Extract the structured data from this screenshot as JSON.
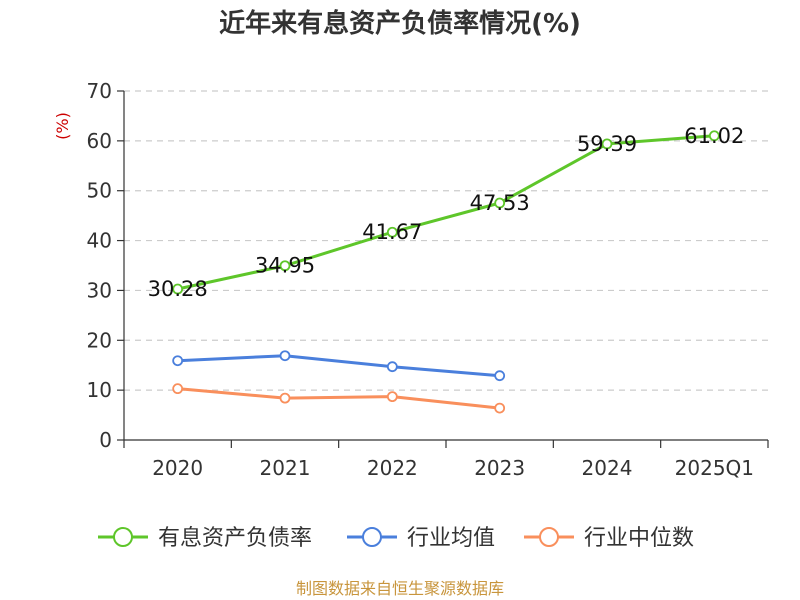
{
  "chart_data": {
    "type": "line",
    "title": "近年来有息资产负债率情况(%)",
    "ylabel": "(%)",
    "ylim": [
      0,
      70
    ],
    "yticks": [
      0,
      10,
      20,
      30,
      40,
      50,
      60,
      70
    ],
    "categories": [
      "2020",
      "2021",
      "2022",
      "2023",
      "2024",
      "2025Q1"
    ],
    "grid": true,
    "legend_position": "bottom",
    "series": [
      {
        "name": "有息资产负债率",
        "color": "#5ec62a",
        "values": [
          30.28,
          34.95,
          41.67,
          47.53,
          59.39,
          61.02
        ],
        "labels": [
          "30.28",
          "34.95",
          "41.67",
          "47.53",
          "59.39",
          "61.02"
        ]
      },
      {
        "name": "行业均值",
        "color": "#4a7fdc",
        "values": [
          15.9,
          16.9,
          14.7,
          12.9,
          null,
          null
        ]
      },
      {
        "name": "行业中位数",
        "color": "#f98f5c",
        "values": [
          10.3,
          8.4,
          8.7,
          6.4,
          null,
          null
        ]
      }
    ]
  },
  "source_text": "制图数据来自恒生聚源数据库",
  "colors": {
    "ylabel": "#cc0000",
    "source": "#c8953c",
    "grid": "#cccccc",
    "axis": "#333333"
  }
}
